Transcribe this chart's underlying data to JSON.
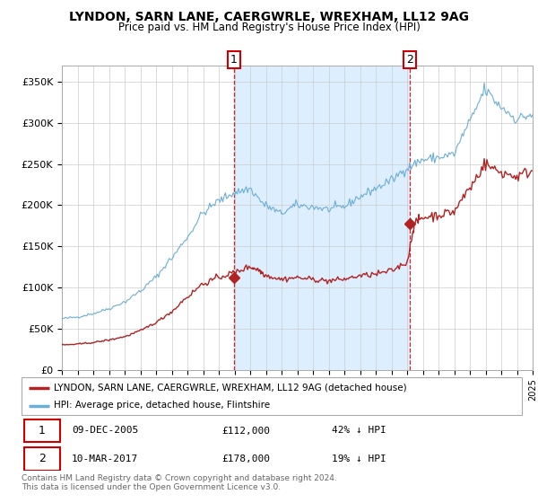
{
  "title": "LYNDON, SARN LANE, CAERGWRLE, WREXHAM, LL12 9AG",
  "subtitle": "Price paid vs. HM Land Registry's House Price Index (HPI)",
  "hpi_color": "#6baed6",
  "price_color": "#b22222",
  "shade_color": "#ddeeff",
  "dashed_color": "#cc0000",
  "background": "#ffffff",
  "grid_color": "#cccccc",
  "ylim": [
    0,
    370000
  ],
  "yticks": [
    0,
    50000,
    100000,
    150000,
    200000,
    250000,
    300000,
    350000
  ],
  "ytick_labels": [
    "£0",
    "£50K",
    "£100K",
    "£150K",
    "£200K",
    "£250K",
    "£300K",
    "£350K"
  ],
  "sale1_date": 2005.95,
  "sale1_price": 112000,
  "sale2_date": 2017.19,
  "sale2_price": 178000,
  "legend_label1": "LYNDON, SARN LANE, CAERGWRLE, WREXHAM, LL12 9AG (detached house)",
  "legend_label2": "HPI: Average price, detached house, Flintshire",
  "footnote3": "Contains HM Land Registry data © Crown copyright and database right 2024.",
  "footnote4": "This data is licensed under the Open Government Licence v3.0.",
  "xlim_left": 1995.4,
  "xlim_right": 2025.0
}
